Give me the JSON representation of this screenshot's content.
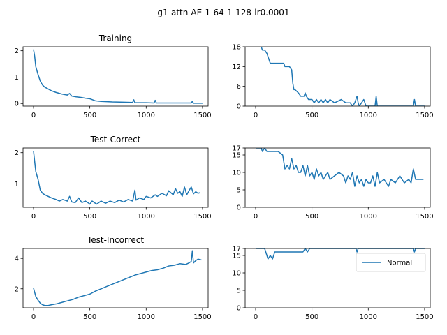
{
  "figure": {
    "title": "g1-attn-AE-1-64-1-128-lr0.0001"
  },
  "colors": {
    "series": "#1f77b4"
  },
  "chart_data": [
    {
      "type": "line",
      "title": "Training",
      "xlim": [
        -93,
        1550
      ],
      "ylim": [
        -0.1,
        2.15
      ],
      "xticks": [
        "0",
        "500",
        "1000",
        "1500"
      ],
      "yticks": [
        "0",
        "1",
        "2"
      ],
      "series": [
        {
          "x": [
            0,
            10,
            20,
            40,
            60,
            80,
            100,
            130,
            160,
            200,
            250,
            300,
            320,
            340,
            380,
            420,
            460,
            500,
            550,
            600,
            700,
            800,
            880,
            890,
            900,
            1000,
            1070,
            1080,
            1090,
            1200,
            1300,
            1400,
            1410,
            1420,
            1500
          ],
          "y": [
            2.05,
            1.8,
            1.4,
            1.1,
            0.85,
            0.7,
            0.62,
            0.55,
            0.48,
            0.42,
            0.36,
            0.32,
            0.38,
            0.28,
            0.25,
            0.23,
            0.2,
            0.18,
            0.1,
            0.08,
            0.06,
            0.05,
            0.04,
            0.14,
            0.03,
            0.03,
            0.02,
            0.12,
            0.02,
            0.02,
            0.02,
            0.02,
            0.08,
            0.01,
            0.01
          ]
        }
      ]
    },
    {
      "type": "line",
      "title": "",
      "xlim": [
        -93,
        1550
      ],
      "ylim": [
        0,
        18
      ],
      "xticks": [
        "0",
        "500",
        "1000",
        "1500"
      ],
      "yticks": [
        "0",
        "6",
        "12",
        "18"
      ],
      "series": [
        {
          "x": [
            0,
            50,
            60,
            80,
            100,
            130,
            250,
            260,
            300,
            320,
            330,
            340,
            350,
            380,
            400,
            430,
            440,
            450,
            470,
            500,
            520,
            540,
            560,
            580,
            600,
            620,
            640,
            660,
            700,
            760,
            800,
            840,
            860,
            880,
            900,
            910,
            920,
            960,
            980,
            1000,
            1060,
            1070,
            1080,
            1090,
            1200,
            1300,
            1400,
            1410,
            1420,
            1500
          ],
          "y": [
            18,
            18,
            17,
            17,
            16,
            13,
            13,
            12,
            12,
            11,
            7,
            5,
            5,
            4,
            3,
            3,
            4,
            3,
            2,
            2,
            1,
            2,
            1,
            2,
            1,
            2,
            1,
            2,
            1,
            2,
            1,
            1,
            0,
            1,
            3,
            1,
            0,
            2,
            0,
            0,
            0,
            3,
            0,
            0,
            0,
            0,
            0,
            2,
            0,
            0
          ]
        }
      ]
    },
    {
      "type": "line",
      "title": "Test-Correct",
      "xlim": [
        -93,
        1550
      ],
      "ylim": [
        0.25,
        2.15
      ],
      "xticks": [
        "0",
        "500",
        "1000",
        "1500"
      ],
      "yticks": [
        "1",
        "2"
      ],
      "series": [
        {
          "x": [
            0,
            20,
            40,
            60,
            80,
            100,
            130,
            160,
            200,
            230,
            260,
            300,
            320,
            340,
            370,
            400,
            430,
            460,
            490,
            500,
            520,
            560,
            600,
            640,
            680,
            720,
            760,
            800,
            840,
            880,
            900,
            910,
            940,
            980,
            1000,
            1040,
            1080,
            1100,
            1140,
            1180,
            1200,
            1240,
            1260,
            1280,
            1300,
            1320,
            1340,
            1360,
            1380,
            1400,
            1420,
            1440,
            1460,
            1480
          ],
          "y": [
            2.05,
            1.4,
            1.15,
            0.8,
            0.7,
            0.65,
            0.6,
            0.55,
            0.5,
            0.45,
            0.5,
            0.45,
            0.6,
            0.42,
            0.4,
            0.55,
            0.4,
            0.45,
            0.38,
            0.35,
            0.45,
            0.35,
            0.45,
            0.38,
            0.45,
            0.4,
            0.48,
            0.42,
            0.5,
            0.45,
            0.8,
            0.48,
            0.55,
            0.5,
            0.6,
            0.55,
            0.65,
            0.6,
            0.7,
            0.62,
            0.78,
            0.65,
            0.85,
            0.7,
            0.75,
            0.6,
            0.9,
            0.65,
            0.78,
            0.9,
            0.68,
            0.75,
            0.7,
            0.72
          ]
        }
      ]
    },
    {
      "type": "line",
      "title": "",
      "xlim": [
        -93,
        1550
      ],
      "ylim": [
        0,
        17
      ],
      "xticks": [
        "0",
        "500",
        "1000",
        "1500"
      ],
      "yticks": [
        "0",
        "5",
        "10",
        "15",
        "17"
      ],
      "series": [
        {
          "x": [
            0,
            50,
            60,
            80,
            100,
            150,
            200,
            240,
            260,
            280,
            300,
            320,
            340,
            360,
            380,
            400,
            420,
            440,
            460,
            480,
            500,
            520,
            540,
            560,
            580,
            600,
            620,
            640,
            660,
            700,
            740,
            780,
            800,
            820,
            840,
            860,
            880,
            900,
            920,
            940,
            960,
            980,
            1000,
            1020,
            1040,
            1060,
            1080,
            1100,
            1140,
            1180,
            1200,
            1240,
            1280,
            1320,
            1360,
            1380,
            1400,
            1420,
            1460,
            1490
          ],
          "y": [
            17,
            17,
            16,
            17,
            16,
            16,
            16,
            15,
            11,
            12,
            11,
            14,
            11,
            12,
            10,
            10,
            12,
            9,
            12,
            9,
            10,
            8,
            11,
            9,
            10,
            8,
            9,
            10,
            8,
            9,
            10,
            9,
            7,
            9,
            8,
            10,
            6,
            9,
            7,
            8,
            6,
            8,
            7,
            7,
            9,
            6,
            10,
            7,
            8,
            6,
            8,
            7,
            9,
            7,
            8,
            7,
            11,
            8,
            8,
            8
          ]
        }
      ]
    },
    {
      "type": "line",
      "title": "Test-Incorrect",
      "xlim": [
        -93,
        1550
      ],
      "ylim": [
        0.75,
        4.65
      ],
      "xticks": [
        "0",
        "500",
        "1000",
        "1500"
      ],
      "yticks": [
        "2",
        "4"
      ],
      "series": [
        {
          "x": [
            0,
            20,
            40,
            60,
            80,
            100,
            130,
            160,
            200,
            250,
            300,
            350,
            400,
            450,
            500,
            550,
            600,
            650,
            700,
            750,
            800,
            850,
            900,
            950,
            1000,
            1050,
            1100,
            1150,
            1200,
            1250,
            1300,
            1350,
            1380,
            1400,
            1410,
            1420,
            1440,
            1460,
            1490
          ],
          "y": [
            2.05,
            1.5,
            1.25,
            1.05,
            0.95,
            0.9,
            0.9,
            0.95,
            1.0,
            1.1,
            1.2,
            1.3,
            1.45,
            1.55,
            1.65,
            1.85,
            2.0,
            2.15,
            2.3,
            2.45,
            2.6,
            2.75,
            2.9,
            3.0,
            3.1,
            3.2,
            3.25,
            3.35,
            3.5,
            3.55,
            3.65,
            3.6,
            3.7,
            3.8,
            4.5,
            3.7,
            3.85,
            3.95,
            3.9
          ]
        }
      ]
    },
    {
      "type": "line",
      "title": "",
      "xlim": [
        -93,
        1550
      ],
      "ylim": [
        0,
        17
      ],
      "xticks": [
        "0",
        "500",
        "1000",
        "1500"
      ],
      "yticks": [
        "0",
        "5",
        "10",
        "15",
        "17"
      ],
      "legend": {
        "entries": [
          "Normal"
        ],
        "placement": "upper right"
      },
      "series": [
        {
          "name": "Normal",
          "x": [
            0,
            80,
            100,
            110,
            130,
            150,
            170,
            200,
            250,
            300,
            350,
            400,
            420,
            440,
            460,
            480,
            500,
            540,
            600,
            700,
            800,
            890,
            900,
            910,
            1000,
            1100,
            1200,
            1300,
            1400,
            1410,
            1420,
            1500
          ],
          "y": [
            17,
            17,
            15,
            14,
            15,
            14,
            16,
            16,
            16,
            16,
            16,
            16,
            16,
            17,
            16,
            17,
            17,
            17,
            17,
            17,
            17,
            17,
            16,
            17,
            17,
            17,
            17,
            17,
            17,
            16,
            17,
            17
          ]
        }
      ]
    }
  ]
}
